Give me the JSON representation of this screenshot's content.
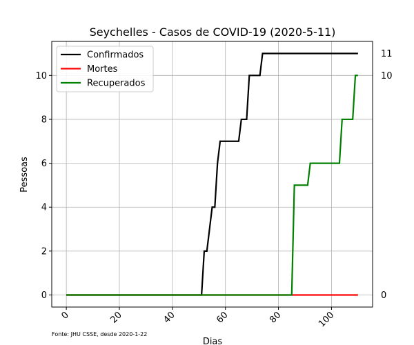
{
  "chart_data": {
    "type": "line",
    "title": "Seychelles - Casos de COVID-19 (2020-5-11)",
    "xlabel": "Dias",
    "ylabel": "Pessoas",
    "xlim": [
      -5.5,
      115.5
    ],
    "ylim": [
      -0.55,
      11.55
    ],
    "x_ticks": [
      0,
      20,
      40,
      60,
      80,
      100
    ],
    "y_ticks": [
      0,
      2,
      4,
      6,
      8,
      10
    ],
    "grid": true,
    "legend_position": "upper-left",
    "series": [
      {
        "name": "Confirmados",
        "color": "#000000",
        "points": [
          [
            0,
            0
          ],
          [
            51,
            0
          ],
          [
            52,
            2
          ],
          [
            53,
            2
          ],
          [
            55,
            4
          ],
          [
            56,
            4
          ],
          [
            57,
            6
          ],
          [
            58,
            7
          ],
          [
            65,
            7
          ],
          [
            66,
            8
          ],
          [
            68,
            8
          ],
          [
            69,
            10
          ],
          [
            73,
            10
          ],
          [
            74,
            11
          ],
          [
            110,
            11
          ]
        ]
      },
      {
        "name": "Mortes",
        "color": "#ff0000",
        "points": [
          [
            0,
            0
          ],
          [
            110,
            0
          ]
        ]
      },
      {
        "name": "Recuperados",
        "color": "#008000",
        "points": [
          [
            0,
            0
          ],
          [
            85,
            0
          ],
          [
            86,
            5
          ],
          [
            91,
            5
          ],
          [
            92,
            6
          ],
          [
            103,
            6
          ],
          [
            104,
            8
          ],
          [
            108,
            8
          ],
          [
            109,
            10
          ],
          [
            110,
            10
          ]
        ]
      }
    ],
    "end_labels": [
      {
        "value": 11,
        "text": "11"
      },
      {
        "value": 10,
        "text": "10"
      },
      {
        "value": 0,
        "text": "0"
      }
    ],
    "source_note": "Fonte: JHU CSSE, desde 2020-1-22"
  }
}
